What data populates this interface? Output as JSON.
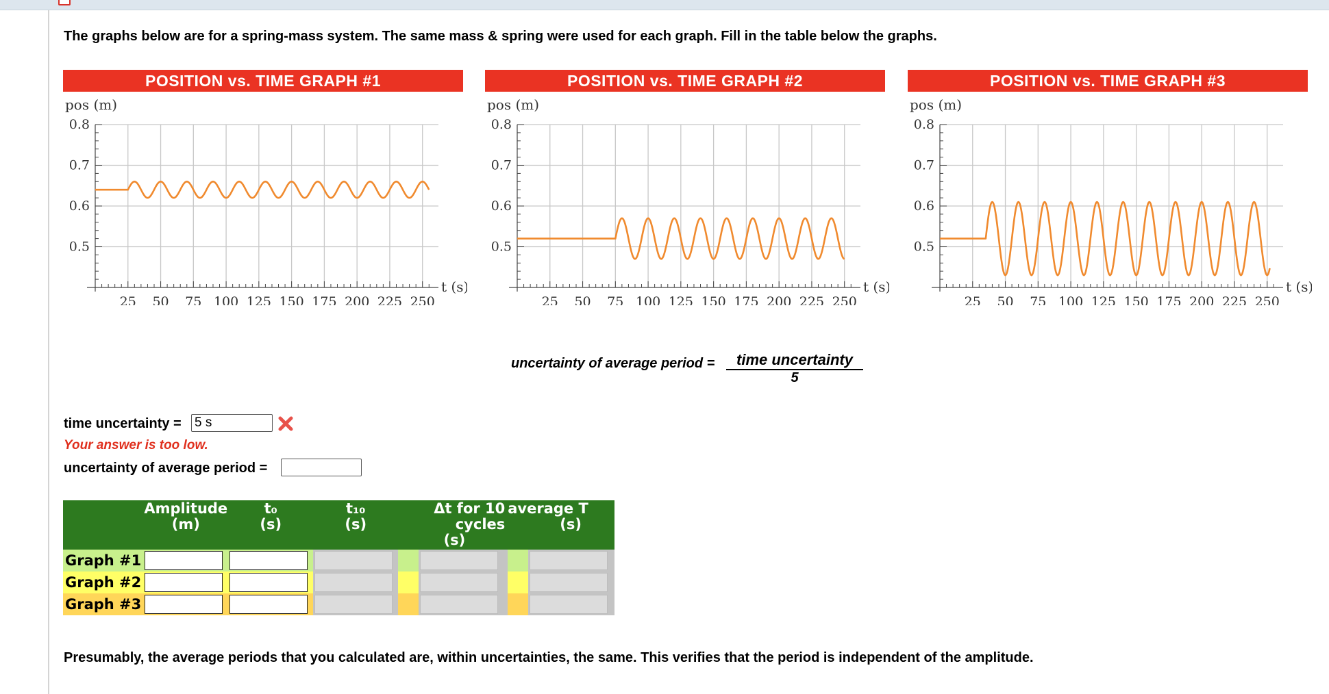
{
  "intro_text": "The graphs below are for a spring-mass system. The same mass & spring were used for each graph. Fill in the table below the graphs.",
  "colors": {
    "title_bar": "#ea3323",
    "curve": "#f08a2e",
    "table_header": "#2d7a1f",
    "graph1_row": "#c8f08c",
    "graph2_row": "#ffff66",
    "graph3_row": "#ffd659",
    "error": "#e0301e"
  },
  "graphs": [
    {
      "title": "POSITION vs. TIME GRAPH #1",
      "ylabel": "pos (m)",
      "xlabel": "t (s)"
    },
    {
      "title": "POSITION vs. TIME GRAPH #2",
      "ylabel": "pos (m)",
      "xlabel": "t (s)"
    },
    {
      "title": "POSITION vs. TIME GRAPH #3",
      "ylabel": "pos (m)",
      "xlabel": "t (s)"
    }
  ],
  "chart_data": [
    {
      "type": "line",
      "title": "POSITION vs. TIME GRAPH #1",
      "xlabel": "t (s)",
      "ylabel": "pos (m)",
      "xticks": [
        25,
        50,
        75,
        100,
        125,
        150,
        175,
        200,
        225,
        250
      ],
      "yticks": [
        "0.5",
        "0.6",
        "0.7",
        "0.8"
      ],
      "xlim": [
        0,
        258
      ],
      "ylim": [
        0.4,
        0.8
      ],
      "rest_position": 0.64,
      "start_time": 25,
      "amplitude": 0.02,
      "period": 20,
      "end_time": 255
    },
    {
      "type": "line",
      "title": "POSITION vs. TIME GRAPH #2",
      "xlabel": "t (s)",
      "ylabel": "pos (m)",
      "xticks": [
        25,
        50,
        75,
        100,
        125,
        150,
        175,
        200,
        225,
        250
      ],
      "yticks": [
        "0.5",
        "0.6",
        "0.7",
        "0.8"
      ],
      "xlim": [
        0,
        258
      ],
      "ylim": [
        0.4,
        0.8
      ],
      "rest_position": 0.52,
      "start_time": 75,
      "amplitude": 0.05,
      "period": 20,
      "end_time": 250
    },
    {
      "type": "line",
      "title": "POSITION vs. TIME GRAPH #3",
      "xlabel": "t (s)",
      "ylabel": "pos (m)",
      "xticks": [
        25,
        50,
        75,
        100,
        125,
        150,
        175,
        200,
        225,
        250
      ],
      "yticks": [
        "0.5",
        "0.6",
        "0.7",
        "0.8"
      ],
      "xlim": [
        0,
        258
      ],
      "ylim": [
        0.4,
        0.8
      ],
      "rest_position": 0.52,
      "start_time": 35,
      "amplitude": 0.09,
      "period": 20,
      "end_time": 252
    }
  ],
  "formula": {
    "lhs": "uncertainty of average period =",
    "numerator": "time uncertainty",
    "denominator": "5"
  },
  "time_uncertainty": {
    "label": "time uncertainty =",
    "value": "5 s",
    "feedback": "Your answer is too low."
  },
  "period_uncertainty": {
    "label": "uncertainty of average period =",
    "value": ""
  },
  "table": {
    "headers": [
      {
        "line1": "Amplitude",
        "line2": "(m)"
      },
      {
        "line1": "t₀",
        "line2": "(s)"
      },
      {
        "line1": "t₁₀",
        "line2": "(s)"
      },
      {
        "line1": "Δt for 10 cycles",
        "line2": "(s)"
      },
      {
        "line1": "average T",
        "line2": "(s)"
      }
    ],
    "rows": [
      "Graph #1",
      "Graph #2",
      "Graph #3"
    ]
  },
  "footer_text": "Presumably, the average periods that you calculated are, within uncertainties, the same. This verifies that the period is independent of the amplitude."
}
